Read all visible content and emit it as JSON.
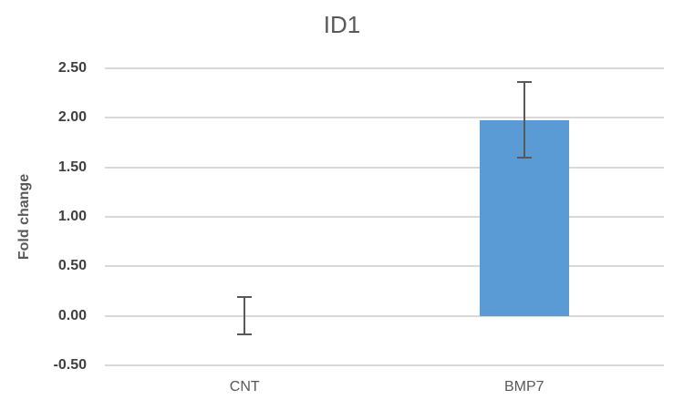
{
  "chart_data": {
    "type": "bar",
    "title": "ID1",
    "xlabel": "",
    "ylabel": "Fold change",
    "categories": [
      "CNT",
      "BMP7"
    ],
    "values": [
      0.0,
      1.98
    ],
    "error_bars": {
      "plus": [
        0.19,
        0.38
      ],
      "minus": [
        0.19,
        0.38
      ]
    },
    "ylim": [
      -0.5,
      2.5
    ],
    "yticks": [
      {
        "value": 2.5,
        "label": "2.50"
      },
      {
        "value": 2.0,
        "label": "2.00"
      },
      {
        "value": 1.5,
        "label": "1.50"
      },
      {
        "value": 1.0,
        "label": "1.00"
      },
      {
        "value": 0.5,
        "label": "0.50"
      },
      {
        "value": 0.0,
        "label": "0.00"
      },
      {
        "value": -0.5,
        "label": "-0.50"
      }
    ],
    "grid": true,
    "legend": false
  },
  "colors": {
    "bar_fill": "#5B9BD5",
    "error_bar": "#595959",
    "gridline": "#D9D9D9",
    "title_text": "#595959",
    "axis_text": "#595959"
  }
}
